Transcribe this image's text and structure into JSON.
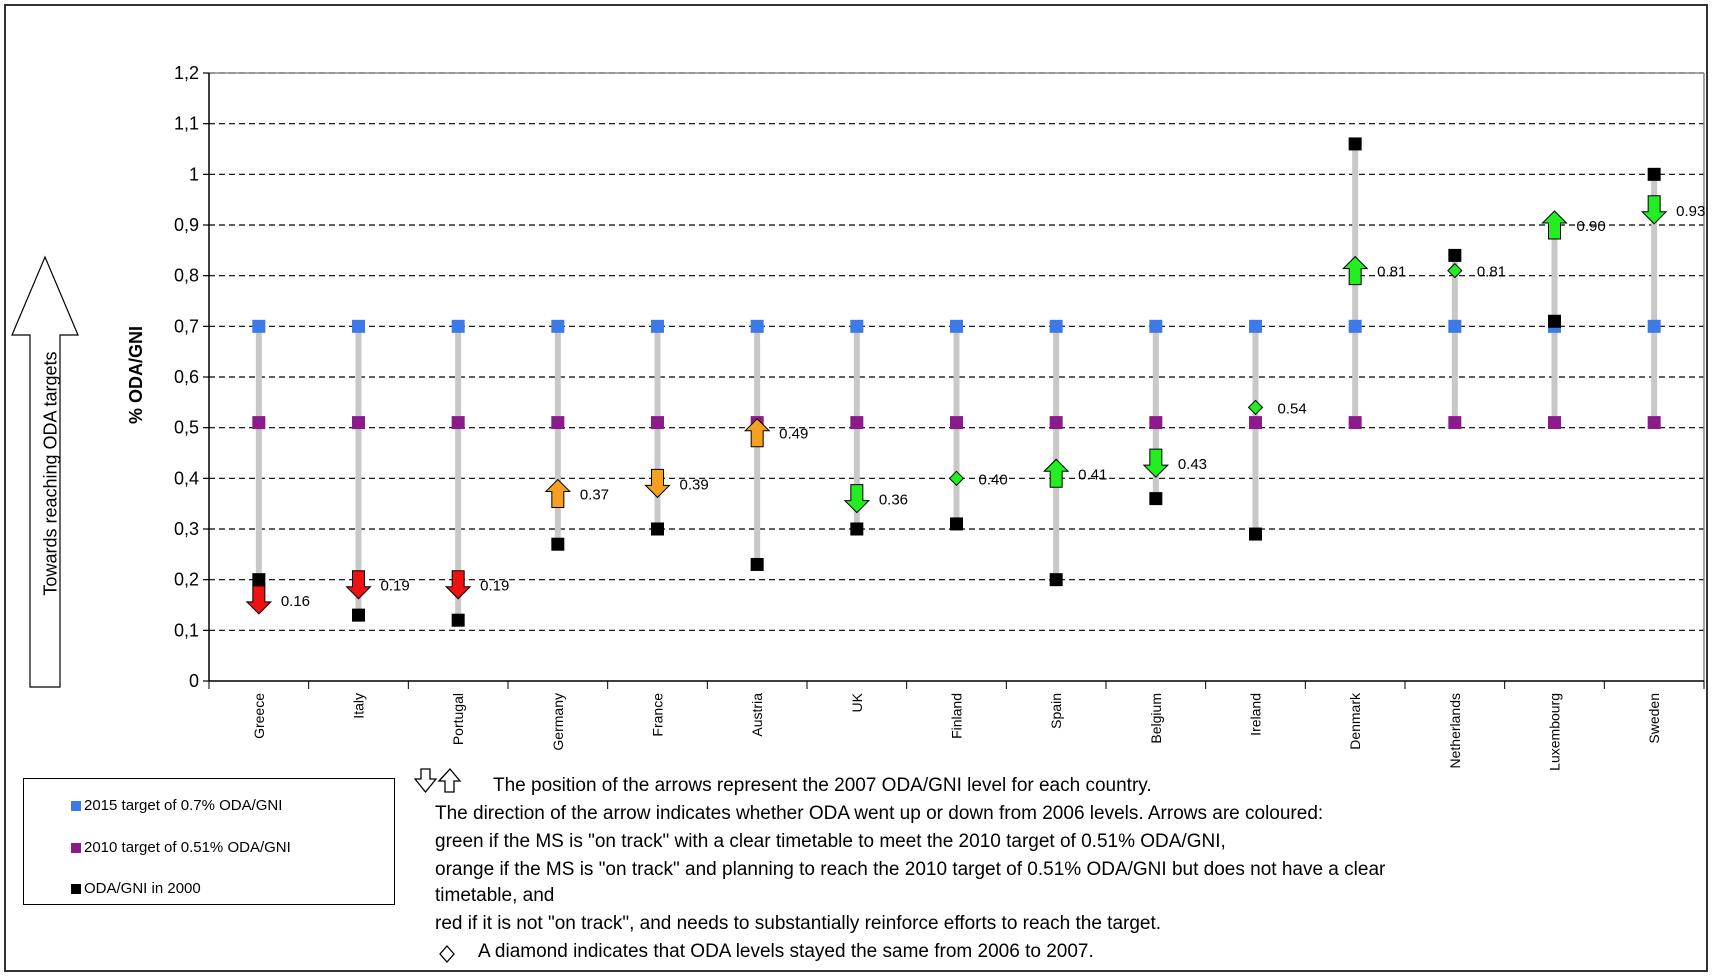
{
  "chart_data": {
    "type": "scatter",
    "ylabel": "% ODA/GNI",
    "side_label": "Towards reaching ODA targets",
    "ylim": [
      0,
      1.2
    ],
    "y_ticks": [
      "0",
      "0,1",
      "0,2",
      "0,3",
      "0,4",
      "0,5",
      "0,6",
      "0,7",
      "0,8",
      "0,9",
      "1",
      "1,1",
      "1,2"
    ],
    "grid": "horizontal dashed",
    "categories": [
      "Greece",
      "Italy",
      "Portugal",
      "Germany",
      "France",
      "Austria",
      "UK",
      "Finland",
      "Spain",
      "Belgium",
      "Ireland",
      "Denmark",
      "Netherlands",
      "Luxembourg",
      "Sweden"
    ],
    "series": [
      {
        "name": "2015 target of 0.7% ODA/GNI",
        "color": "#3b7ae8",
        "marker": "square",
        "values": [
          0.7,
          0.7,
          0.7,
          0.7,
          0.7,
          0.7,
          0.7,
          0.7,
          0.7,
          0.7,
          0.7,
          0.7,
          0.7,
          0.7,
          0.7
        ]
      },
      {
        "name": "2010 target of 0.51% ODA/GNI",
        "color": "#8b1a8b",
        "marker": "square",
        "values": [
          0.51,
          0.51,
          0.51,
          0.51,
          0.51,
          0.51,
          0.51,
          0.51,
          0.51,
          0.51,
          0.51,
          0.51,
          0.51,
          0.51,
          0.51
        ]
      },
      {
        "name": "ODA/GNI in 2000",
        "color": "#000000",
        "marker": "square",
        "values": [
          0.2,
          0.13,
          0.12,
          0.27,
          0.3,
          0.23,
          0.3,
          0.31,
          0.2,
          0.36,
          0.29,
          1.06,
          0.84,
          0.71,
          1.0
        ]
      }
    ],
    "oda_2007": {
      "values": [
        0.16,
        0.19,
        0.19,
        0.37,
        0.39,
        0.49,
        0.36,
        0.4,
        0.41,
        0.43,
        0.54,
        0.81,
        0.81,
        0.9,
        0.93
      ],
      "labels": [
        "0.16",
        "0.19",
        "0.19",
        "0.37",
        "0.39",
        "0.49",
        "0.36",
        "0.40",
        "0.41",
        "0.43",
        "0.54",
        "0.81",
        "0.81",
        "0.90",
        "0.93"
      ],
      "markers": [
        "down",
        "down",
        "down",
        "up",
        "down",
        "up",
        "down",
        "diamond",
        "up",
        "down",
        "diamond",
        "up",
        "diamond",
        "up",
        "down"
      ],
      "colors": [
        "#ee1111",
        "#ee1111",
        "#ee1111",
        "#f5a020",
        "#f5a020",
        "#f5a020",
        "#22ee22",
        "#22ee22",
        "#22ee22",
        "#22ee22",
        "#22ee22",
        "#22ee22",
        "#22ee22",
        "#22ee22",
        "#22ee22"
      ]
    },
    "range_line_color": "#c8c8c8"
  },
  "legend": {
    "items": [
      {
        "label": "2015 target of 0.7% ODA/GNI",
        "color": "#3b7ae8"
      },
      {
        "label": "2010 target of 0.51% ODA/GNI",
        "color": "#8b1a8b"
      },
      {
        "label": "ODA/GNI in 2000",
        "color": "#000000"
      }
    ]
  },
  "notes": {
    "line1": "The position of the arrows represent the 2007 ODA/GNI  level for each country.",
    "line2": "The direction of the arrow indicates whether ODA went up or down from 2006 levels.  Arrows are coloured:",
    "line3": "green if the MS is \"on track\" with a clear timetable to meet the 2010  target of 0.51% ODA/GNI,",
    "line4": "orange if the MS is \"on track\" and planning to reach the 2010 target of 0.51% ODA/GNI but does not have a clear",
    "line5": "timetable, and",
    "line6": "red if it is not \"on track\", and needs to substantially reinforce efforts to reach the target.",
    "line7": "A diamond indicates that ODA levels stayed the same from 2006 to 2007."
  }
}
